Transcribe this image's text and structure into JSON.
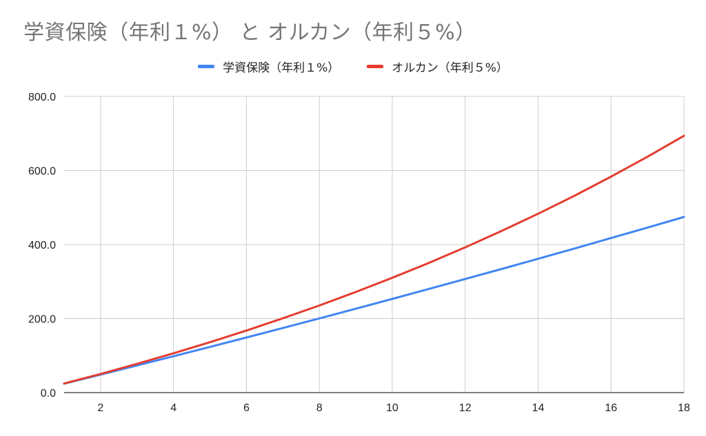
{
  "title": "学資保険（年利１%） と オルカン（年利５%）",
  "colors": {
    "series1": "#4285f4",
    "series2": "#e33d2f",
    "grid": "#cccccc",
    "axis": "#333333"
  },
  "chart_data": {
    "type": "line",
    "title": "学資保険（年利１%） と オルカン（年利５%）",
    "legend_position": "top",
    "grid": true,
    "xlim": [
      1,
      18
    ],
    "ylim": [
      0,
      800
    ],
    "x_ticks": [
      2,
      4,
      6,
      8,
      10,
      12,
      14,
      16,
      18
    ],
    "y_ticks": [
      "0.0",
      "200.0",
      "400.0",
      "600.0",
      "800.0"
    ],
    "x": [
      1,
      2,
      3,
      4,
      5,
      6,
      7,
      8,
      9,
      10,
      11,
      12,
      13,
      14,
      15,
      16,
      17,
      18
    ],
    "series": [
      {
        "name": "学資保険（年利１%）",
        "values": [
          24.2,
          48.6,
          73.3,
          98.2,
          123.4,
          148.8,
          174.5,
          200.4,
          226.6,
          253.1,
          279.8,
          306.8,
          334.0,
          361.5,
          389.3,
          417.4,
          445.7,
          474.4
        ]
      },
      {
        "name": "オルカン（年利５%）",
        "values": [
          24.6,
          50.5,
          77.7,
          106.2,
          136.2,
          167.7,
          200.7,
          235.4,
          271.8,
          310.1,
          350.2,
          392.4,
          436.7,
          483.2,
          532.0,
          583.2,
          637.0,
          693.5
        ]
      }
    ]
  }
}
